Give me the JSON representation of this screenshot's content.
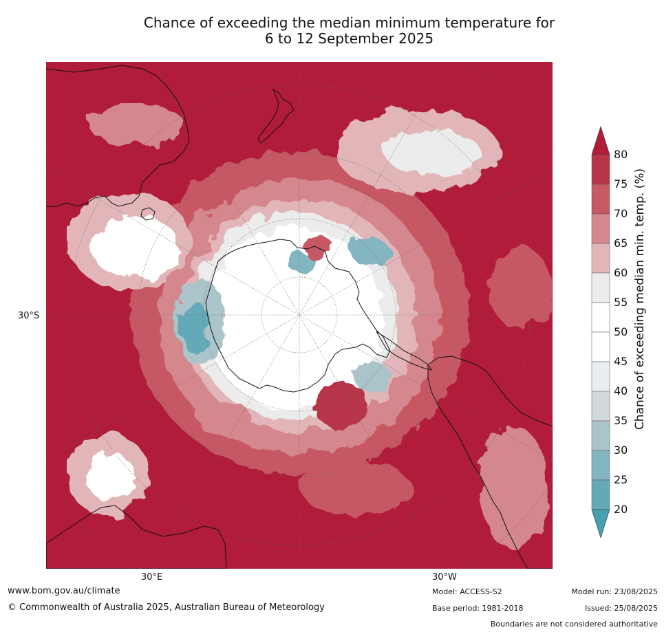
{
  "title_line1": "Chance of exceeding the median minimum temperature for",
  "title_line2": "6 to 12 September 2025",
  "graticule": {
    "lat_label": "30°S",
    "lon_label_east": "30°E",
    "lon_label_west": "30°W"
  },
  "colorbar": {
    "label": "Chance of exceeding median min. temp. (%)",
    "ticks": [
      "80",
      "75",
      "70",
      "65",
      "60",
      "55",
      "50",
      "45",
      "40",
      "35",
      "30",
      "25",
      "20"
    ],
    "bins": [
      {
        "range": ">80",
        "color": "#b01c3a"
      },
      {
        "range": "75-80",
        "color": "#b83448"
      },
      {
        "range": "70-75",
        "color": "#c65964"
      },
      {
        "range": "65-70",
        "color": "#d4878c"
      },
      {
        "range": "60-65",
        "color": "#e2b6b8"
      },
      {
        "range": "55-60",
        "color": "#ececec"
      },
      {
        "range": "50-55",
        "color": "#ffffff"
      },
      {
        "range": "45-50",
        "color": "#ffffff"
      },
      {
        "range": "40-45",
        "color": "#e8eef0"
      },
      {
        "range": "35-40",
        "color": "#d1dadb"
      },
      {
        "range": "30-35",
        "color": "#aac4ca"
      },
      {
        "range": "25-30",
        "color": "#84b6c2"
      },
      {
        "range": "20-25",
        "color": "#64a9b8"
      },
      {
        "range": "<20",
        "color": "#46a0b0"
      }
    ]
  },
  "footer": {
    "website": "www.bom.gov.au/climate",
    "copyright": "© Commonwealth of Australia 2025, Australian Bureau of Meteorology",
    "model": "Model: ACCESS-S2",
    "base_period": "Base period: 1981-2018",
    "model_run": "Model run: 23/08/2025",
    "issued": "Issued: 25/08/2025",
    "boundaries": "Boundaries are not considered authoritative"
  }
}
